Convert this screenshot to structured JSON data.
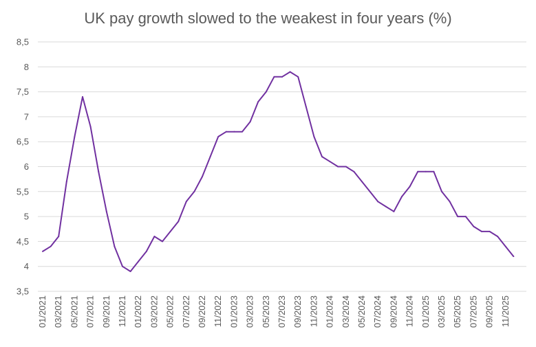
{
  "chart_data": {
    "type": "line",
    "title": "UK pay growth slowed to the weakest in four years (%)",
    "xlabel": "",
    "ylabel": "",
    "ylim": [
      3.5,
      8.5
    ],
    "y_ticks": [
      "3,5",
      "4",
      "4,5",
      "5",
      "5,5",
      "6",
      "6,5",
      "7",
      "7,5",
      "8",
      "8,5"
    ],
    "y_tick_values": [
      3.5,
      4,
      4.5,
      5,
      5.5,
      6,
      6.5,
      7,
      7.5,
      8,
      8.5
    ],
    "grid": "horizontal",
    "line_color": "#7030a0",
    "x_tick_labels": [
      "01/2021",
      "03/2021",
      "05/2021",
      "07/2021",
      "09/2021",
      "11/2021",
      "01/2022",
      "03/2022",
      "05/2022",
      "07/2022",
      "09/2022",
      "11/2022",
      "01/2023",
      "03/2023",
      "05/2023",
      "07/2023",
      "09/2023",
      "11/2023",
      "01/2024",
      "03/2024",
      "05/2024",
      "07/2024",
      "09/2024",
      "11/2024",
      "01/2025",
      "03/2025",
      "05/2025",
      "07/2025",
      "09/2025",
      "11/2025"
    ],
    "series": [
      {
        "values": [
          4.3,
          4.4,
          4.6,
          5.7,
          6.6,
          7.4,
          6.8,
          5.9,
          5.1,
          4.4,
          4.0,
          3.9,
          4.1,
          4.3,
          4.6,
          4.5,
          4.7,
          4.9,
          5.3,
          5.5,
          5.8,
          6.2,
          6.6,
          6.7,
          6.7,
          6.7,
          6.9,
          7.3,
          7.5,
          7.8,
          7.8,
          7.9,
          7.8,
          7.2,
          6.6,
          6.2,
          6.1,
          6.0,
          6.0,
          5.9,
          5.7,
          5.5,
          5.3,
          5.2,
          5.1,
          5.4,
          5.6,
          5.9,
          5.9,
          5.9,
          5.5,
          5.3,
          5.0,
          5.0,
          4.8,
          4.7,
          4.7,
          4.6,
          4.4,
          4.2
        ]
      }
    ]
  }
}
